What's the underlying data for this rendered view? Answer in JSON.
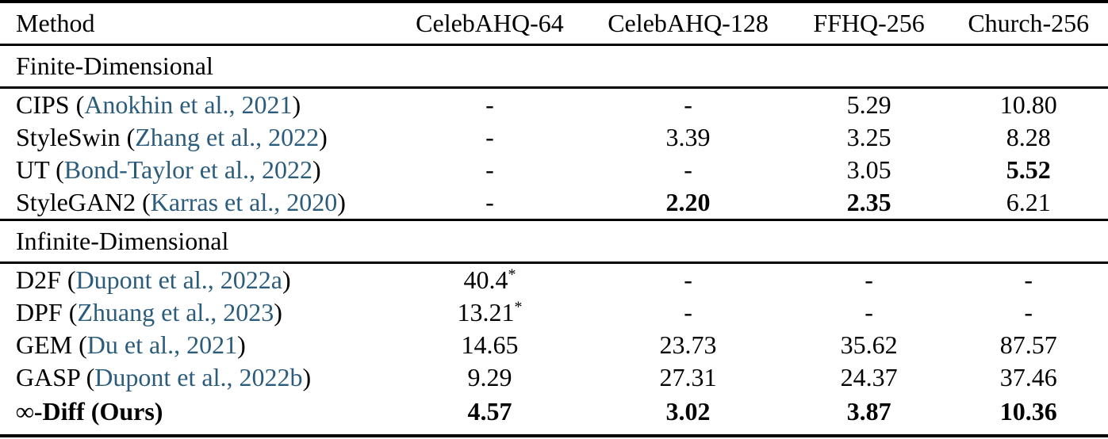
{
  "colors": {
    "citation_link": "#2c5c7c",
    "text": "#000000",
    "rule": "#000000",
    "background": "#ffffff"
  },
  "table": {
    "columns": [
      {
        "label": "Method"
      },
      {
        "label": "CelebAHQ-64"
      },
      {
        "label": "CelebAHQ-128"
      },
      {
        "label": "FFHQ-256"
      },
      {
        "label": "Church-256"
      }
    ],
    "sections": [
      {
        "label": "Finite-Dimensional",
        "rows": [
          {
            "method": "CIPS",
            "citation": "Anokhin et al., 2021",
            "bold_method": false,
            "values": [
              {
                "text": "-",
                "bold": false,
                "sup": ""
              },
              {
                "text": "-",
                "bold": false,
                "sup": ""
              },
              {
                "text": "5.29",
                "bold": false,
                "sup": ""
              },
              {
                "text": "10.80",
                "bold": false,
                "sup": ""
              }
            ]
          },
          {
            "method": "StyleSwin",
            "citation": "Zhang et al., 2022",
            "bold_method": false,
            "values": [
              {
                "text": "-",
                "bold": false,
                "sup": ""
              },
              {
                "text": "3.39",
                "bold": false,
                "sup": ""
              },
              {
                "text": "3.25",
                "bold": false,
                "sup": ""
              },
              {
                "text": "8.28",
                "bold": false,
                "sup": ""
              }
            ]
          },
          {
            "method": "UT",
            "citation": "Bond-Taylor et al., 2022",
            "bold_method": false,
            "values": [
              {
                "text": "-",
                "bold": false,
                "sup": ""
              },
              {
                "text": "-",
                "bold": false,
                "sup": ""
              },
              {
                "text": "3.05",
                "bold": false,
                "sup": ""
              },
              {
                "text": "5.52",
                "bold": true,
                "sup": ""
              }
            ]
          },
          {
            "method": "StyleGAN2",
            "citation": "Karras et al., 2020",
            "bold_method": false,
            "values": [
              {
                "text": "-",
                "bold": false,
                "sup": ""
              },
              {
                "text": "2.20",
                "bold": true,
                "sup": ""
              },
              {
                "text": "2.35",
                "bold": true,
                "sup": ""
              },
              {
                "text": "6.21",
                "bold": false,
                "sup": ""
              }
            ]
          }
        ]
      },
      {
        "label": "Infinite-Dimensional",
        "rows": [
          {
            "method": "D2F",
            "citation": "Dupont et al., 2022a",
            "bold_method": false,
            "values": [
              {
                "text": "40.4",
                "bold": false,
                "sup": "*"
              },
              {
                "text": "-",
                "bold": false,
                "sup": ""
              },
              {
                "text": "-",
                "bold": false,
                "sup": ""
              },
              {
                "text": "-",
                "bold": false,
                "sup": ""
              }
            ]
          },
          {
            "method": "DPF",
            "citation": "Zhuang et al., 2023",
            "bold_method": false,
            "values": [
              {
                "text": "13.21",
                "bold": false,
                "sup": "*"
              },
              {
                "text": "-",
                "bold": false,
                "sup": ""
              },
              {
                "text": "-",
                "bold": false,
                "sup": ""
              },
              {
                "text": "-",
                "bold": false,
                "sup": ""
              }
            ]
          },
          {
            "method": "GEM",
            "citation": "Du et al., 2021",
            "bold_method": false,
            "values": [
              {
                "text": "14.65",
                "bold": false,
                "sup": ""
              },
              {
                "text": "23.73",
                "bold": false,
                "sup": ""
              },
              {
                "text": "35.62",
                "bold": false,
                "sup": ""
              },
              {
                "text": "87.57",
                "bold": false,
                "sup": ""
              }
            ]
          },
          {
            "method": "GASP",
            "citation": "Dupont et al., 2022b",
            "bold_method": false,
            "values": [
              {
                "text": "9.29",
                "bold": false,
                "sup": ""
              },
              {
                "text": "27.31",
                "bold": false,
                "sup": ""
              },
              {
                "text": "24.37",
                "bold": false,
                "sup": ""
              },
              {
                "text": "37.46",
                "bold": false,
                "sup": ""
              }
            ]
          },
          {
            "method": "∞-Diff (Ours)",
            "citation": null,
            "bold_method": true,
            "values": [
              {
                "text": "4.57",
                "bold": true,
                "sup": ""
              },
              {
                "text": "3.02",
                "bold": true,
                "sup": ""
              },
              {
                "text": "3.87",
                "bold": true,
                "sup": ""
              },
              {
                "text": "10.36",
                "bold": true,
                "sup": ""
              }
            ]
          }
        ]
      }
    ],
    "citation_open": " (",
    "citation_close": ")"
  }
}
